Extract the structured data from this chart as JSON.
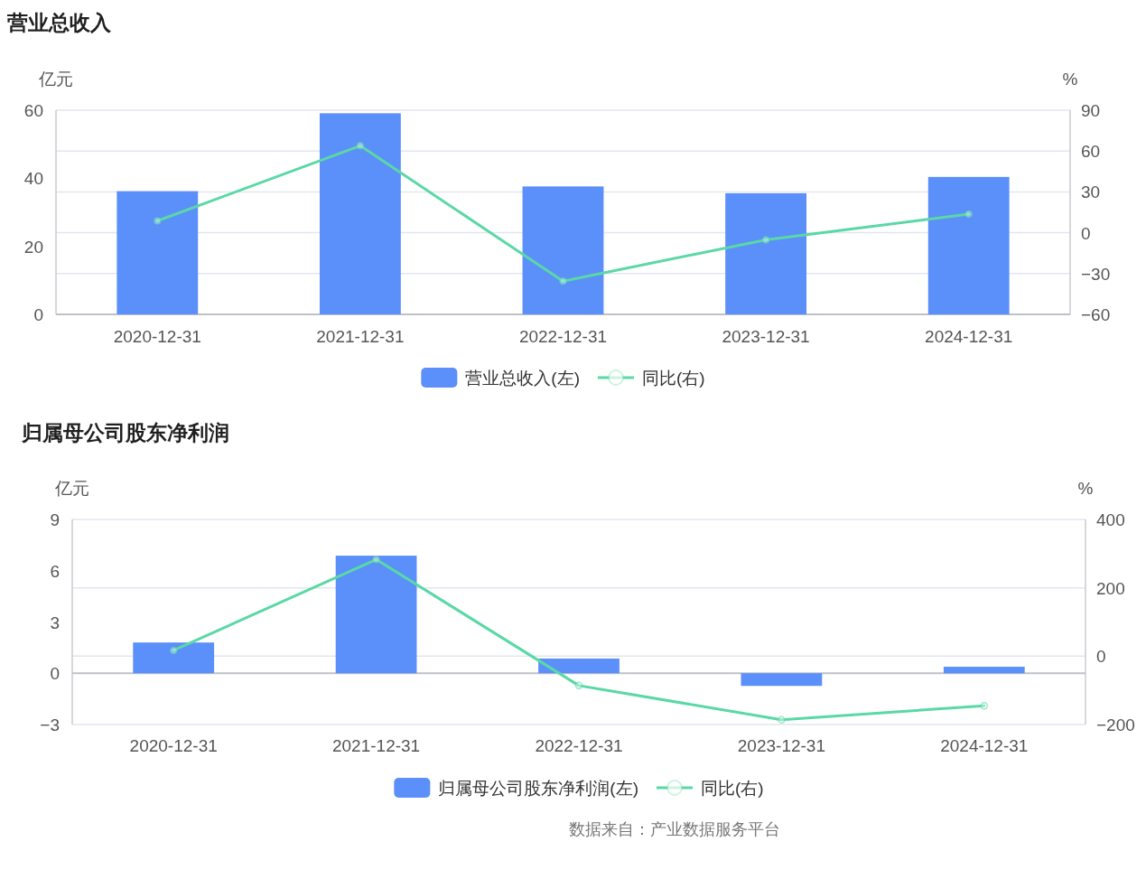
{
  "chart_data": [
    {
      "type": "bar",
      "title": "营业总收入",
      "categories": [
        "2020-12-31",
        "2021-12-31",
        "2022-12-31",
        "2023-12-31",
        "2024-12-31"
      ],
      "ylabel": "亿元",
      "y2label": "%",
      "ylim": [
        0,
        60
      ],
      "yticks": [
        0,
        20,
        40,
        60
      ],
      "y2lim": [
        -60,
        90
      ],
      "y2ticks": [
        -60,
        -30,
        0,
        30,
        60,
        90
      ],
      "grid": "y2",
      "legend": "bottom",
      "series": [
        {
          "name": "营业总收入(左)",
          "color": "#5b8ff9",
          "values": [
            36.2,
            59.1,
            37.6,
            35.6,
            40.4
          ]
        },
        {
          "name": "同比(右)",
          "type": "line",
          "axis": "y2",
          "marker": "circle",
          "color": "#5ad8a6",
          "values": [
            8.7,
            63.9,
            -35.6,
            -5.2,
            13.6
          ]
        }
      ]
    },
    {
      "type": "bar",
      "title": "归属母公司股东净利润",
      "categories": [
        "2020-12-31",
        "2021-12-31",
        "2022-12-31",
        "2023-12-31",
        "2024-12-31"
      ],
      "ylabel": "亿元",
      "y2label": "%",
      "ylim": [
        -3,
        9
      ],
      "yticks": [
        -3,
        0,
        3,
        6,
        9
      ],
      "y2lim": [
        -200,
        400
      ],
      "y2ticks": [
        -200,
        0,
        200,
        400
      ],
      "grid": "y2",
      "legend": "bottom",
      "series": [
        {
          "name": "归属母公司股东净利润(左)",
          "color": "#5b8ff9",
          "values": [
            1.8,
            6.88,
            0.86,
            -0.74,
            0.38
          ]
        },
        {
          "name": "同比(右)",
          "type": "line",
          "axis": "y2",
          "marker": "circle",
          "color": "#5ad8a6",
          "values": [
            17,
            283,
            -86,
            -186,
            -145
          ]
        }
      ],
      "annotations": [
        "数据来自：产业数据服务平台"
      ]
    }
  ]
}
